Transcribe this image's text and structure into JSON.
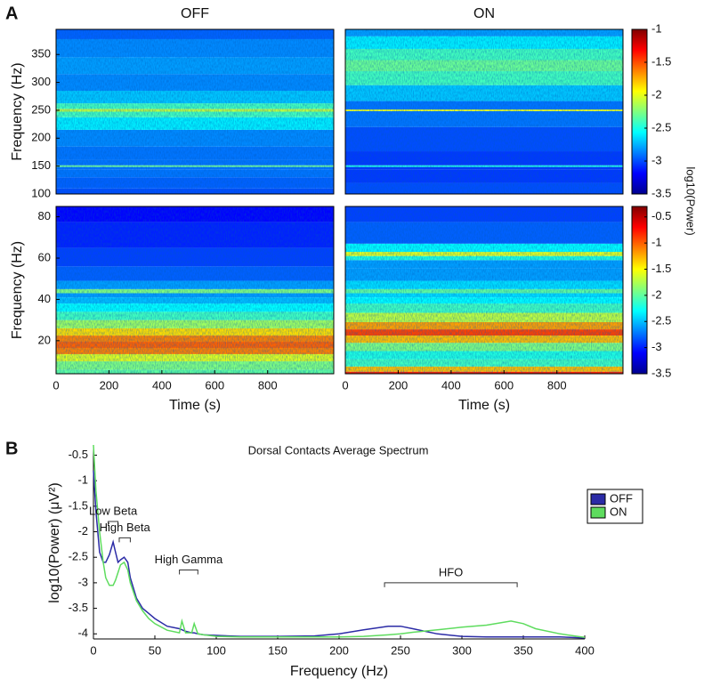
{
  "panel_labels": [
    "A",
    "B"
  ],
  "colorbar_label": "log10(Power)",
  "chart_data": [
    {
      "type": "spectrogram",
      "title": "OFF",
      "ylabel": "Frequency (Hz)",
      "xlim": [
        0,
        1050
      ],
      "ylim": [
        100,
        395
      ],
      "yticks": [
        100,
        150,
        200,
        250,
        300,
        350
      ],
      "freqs": [
        100,
        120,
        140,
        147,
        150,
        153,
        170,
        200,
        230,
        245,
        250,
        255,
        270,
        300,
        330,
        360,
        395
      ],
      "values": [
        -3.0,
        -2.95,
        -2.9,
        -2.9,
        -2.3,
        -2.9,
        -2.9,
        -2.85,
        -2.6,
        -2.4,
        -2.1,
        -2.4,
        -2.7,
        -2.85,
        -2.8,
        -2.85,
        -2.95
      ]
    },
    {
      "type": "spectrogram",
      "title": "ON",
      "xlim": [
        0,
        1050
      ],
      "ylim": [
        100,
        395
      ],
      "freqs": [
        100,
        140,
        147,
        150,
        153,
        200,
        240,
        247,
        250,
        253,
        280,
        310,
        330,
        350,
        370,
        395
      ],
      "values": [
        -3.0,
        -3.05,
        -3.05,
        -2.5,
        -3.05,
        -3.0,
        -2.9,
        -2.9,
        -2.0,
        -2.9,
        -2.7,
        -2.4,
        -2.3,
        -2.4,
        -2.6,
        -2.8
      ],
      "colorbar": {
        "lim": [
          -3.5,
          -1
        ],
        "ticks": [
          -1,
          -1.5,
          -2,
          -2.5,
          -3,
          -3.5
        ]
      }
    },
    {
      "type": "spectrogram",
      "ylabel": "Frequency (Hz)",
      "xlabel": "Time (s)",
      "xlim": [
        0,
        1050
      ],
      "xticks": [
        0,
        200,
        400,
        600,
        800
      ],
      "ylim": [
        4,
        85
      ],
      "yticks": [
        20,
        40,
        60,
        80
      ],
      "freqs": [
        4,
        8,
        12,
        15,
        18,
        21,
        24,
        28,
        32,
        36,
        40,
        42,
        44,
        46,
        52,
        60,
        70,
        85
      ],
      "values": [
        -2.0,
        -1.9,
        -1.6,
        -1.1,
        -1.0,
        -1.1,
        -1.4,
        -1.8,
        -2.1,
        -2.3,
        -2.5,
        -2.6,
        -1.9,
        -2.6,
        -2.8,
        -2.9,
        -3.0,
        -3.1
      ]
    },
    {
      "type": "spectrogram",
      "xlabel": "Time (s)",
      "xlim": [
        0,
        1050
      ],
      "xticks": [
        0,
        200,
        400,
        600,
        800
      ],
      "ylim": [
        4,
        85
      ],
      "freqs": [
        4,
        6,
        9,
        13,
        17,
        21,
        24,
        27,
        31,
        36,
        40,
        42,
        44,
        46,
        52,
        58,
        60,
        62,
        64,
        70,
        85
      ],
      "values": [
        -0.8,
        -1.3,
        -2.1,
        -2.2,
        -1.9,
        -1.3,
        -0.9,
        -1.2,
        -1.7,
        -2.1,
        -2.3,
        -2.4,
        -2.0,
        -2.4,
        -2.6,
        -2.6,
        -2.2,
        -1.6,
        -2.3,
        -2.8,
        -2.9
      ],
      "colorbar": {
        "lim": [
          -3.5,
          -0.3
        ],
        "ticks": [
          -0.5,
          -1,
          -1.5,
          -2,
          -2.5,
          -3,
          -3.5
        ]
      }
    },
    {
      "type": "line",
      "title": "Dorsal Contacts Average Spectrum",
      "xlabel": "Frequency (Hz)",
      "ylabel": "log10(Power) (μV²)",
      "xlim": [
        0,
        400
      ],
      "xticks": [
        0,
        50,
        100,
        150,
        200,
        250,
        300,
        350,
        400
      ],
      "ylim": [
        -4.1,
        -0.3
      ],
      "yticks": [
        -0.5,
        -1,
        -1.5,
        -2,
        -2.5,
        -3,
        -3.5,
        -4
      ],
      "x": [
        0,
        2,
        5,
        8,
        10,
        13,
        16,
        18,
        20,
        22,
        25,
        28,
        30,
        35,
        40,
        45,
        50,
        60,
        70,
        72,
        75,
        80,
        82,
        85,
        90,
        100,
        120,
        150,
        180,
        200,
        220,
        240,
        250,
        260,
        280,
        300,
        320,
        340,
        350,
        360,
        380,
        400
      ],
      "series": [
        {
          "name": "OFF",
          "color": "#2b2ba6",
          "values": [
            -0.8,
            -1.6,
            -2.4,
            -2.6,
            -2.6,
            -2.45,
            -2.2,
            -2.4,
            -2.6,
            -2.55,
            -2.5,
            -2.6,
            -2.9,
            -3.3,
            -3.5,
            -3.6,
            -3.7,
            -3.85,
            -3.9,
            -3.92,
            -3.95,
            -3.98,
            -3.98,
            -4.0,
            -4.02,
            -4.03,
            -4.05,
            -4.05,
            -4.04,
            -4.0,
            -3.92,
            -3.85,
            -3.85,
            -3.9,
            -4.0,
            -4.05,
            -4.06,
            -4.06,
            -4.06,
            -4.06,
            -4.06,
            -4.08
          ]
        },
        {
          "name": "ON",
          "color": "#5edc5e",
          "values": [
            -0.3,
            -1.2,
            -2.0,
            -2.6,
            -2.9,
            -3.05,
            -3.05,
            -2.95,
            -2.8,
            -2.65,
            -2.6,
            -2.75,
            -3.0,
            -3.35,
            -3.55,
            -3.7,
            -3.8,
            -3.93,
            -3.98,
            -3.75,
            -3.98,
            -3.98,
            -3.8,
            -4.0,
            -4.02,
            -4.05,
            -4.06,
            -4.06,
            -4.06,
            -4.06,
            -4.05,
            -4.02,
            -4.0,
            -3.97,
            -3.92,
            -3.87,
            -3.83,
            -3.75,
            -3.8,
            -3.9,
            -4.0,
            -4.07
          ]
        }
      ],
      "annotations": [
        {
          "label": "Low Beta",
          "x": [
            12,
            20
          ],
          "y": -1.8
        },
        {
          "label": "High Beta",
          "x": [
            21,
            30
          ],
          "y": -2.12
        },
        {
          "label": "High Gamma",
          "x": [
            70,
            85
          ],
          "y": -2.75
        },
        {
          "label": "HFO",
          "x": [
            237,
            345
          ],
          "y": -3.0
        }
      ],
      "legend": "upper right"
    }
  ]
}
